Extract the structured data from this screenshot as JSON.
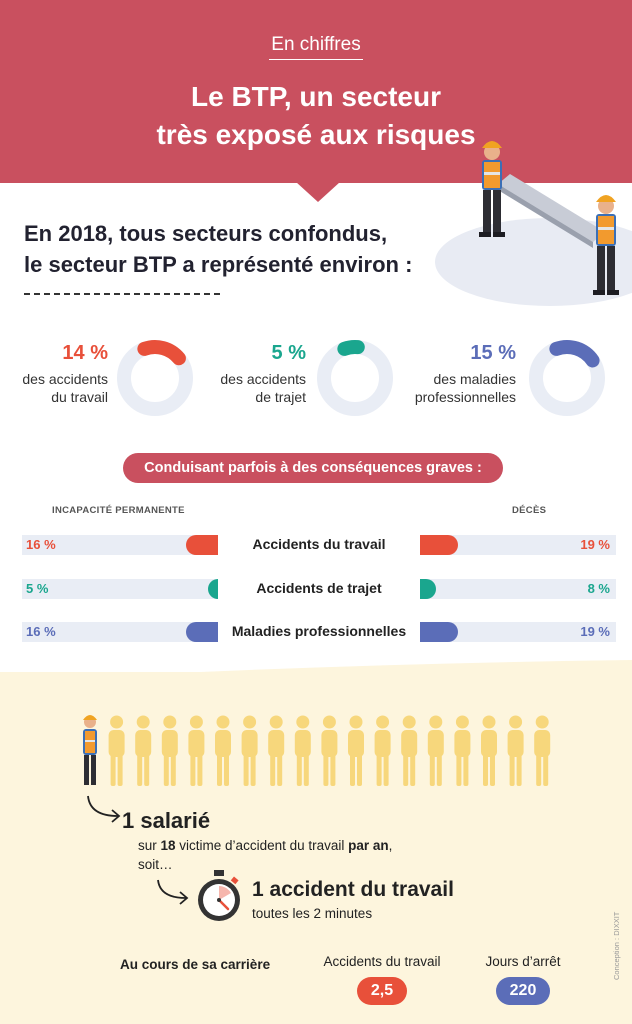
{
  "header": {
    "kicker": "En chiffres",
    "title_line1": "Le BTP, un secteur",
    "title_line2": "très exposé aux risques"
  },
  "intro": {
    "line1": "En 2018, tous secteurs confondus,",
    "line2": "le secteur BTP a représenté environ :"
  },
  "share_stats": [
    {
      "percent": "14 %",
      "value": 14,
      "label_line1": "des accidents",
      "label_line2": "du travail",
      "color": "#e8503a"
    },
    {
      "percent": "5 %",
      "value": 5,
      "label_line1": "des accidents",
      "label_line2": "de trajet",
      "color": "#1aa68e"
    },
    {
      "percent": "15 %",
      "value": 15,
      "label_line1": "des maladies",
      "label_line2": "professionnelles",
      "color": "#5b6db8"
    }
  ],
  "consequences": {
    "pill": "Conduisant parfois à des conséquences graves :",
    "left_header": "INCAPACITÉ PERMANENTE",
    "right_header": "DÉCÈS",
    "rows": [
      {
        "label": "Accidents du travail",
        "left_text": "16 %",
        "left_value": 16,
        "right_text": "19 %",
        "right_value": 19,
        "color": "#e8503a"
      },
      {
        "label": "Accidents de trajet",
        "left_text": "5 %",
        "left_value": 5,
        "right_text": "8 %",
        "right_value": 8,
        "color": "#1aa68e"
      },
      {
        "label": "Maladies professionnelles",
        "left_text": "16 %",
        "left_value": 16,
        "right_text": "19 %",
        "right_value": 19,
        "color": "#5b6db8"
      }
    ]
  },
  "employees": {
    "big": "1 salarié",
    "sub_prefix": "sur ",
    "sub_num": "18",
    "sub_middle": " victime d’accident du travail ",
    "sub_bold": "par an",
    "sub_end": ",",
    "sub_line2": "soit…",
    "total_figures": 18
  },
  "timer": {
    "big": "1 accident du travail",
    "small": "toutes les 2 minutes"
  },
  "career": {
    "label": "Au cours de sa carrière",
    "col1_label": "Accidents du travail",
    "col1_value": "2,5",
    "col1_color": "#e8503a",
    "col2_label": "Jours d’arrêt",
    "col2_value": "220",
    "col2_color": "#5b6db8"
  },
  "credit": "Conception : DIXXIT",
  "colors": {
    "header": "#c9505f",
    "bottom_bg": "#fdf5dd",
    "figure": "#f7d77c",
    "track": "#e9edf5"
  }
}
